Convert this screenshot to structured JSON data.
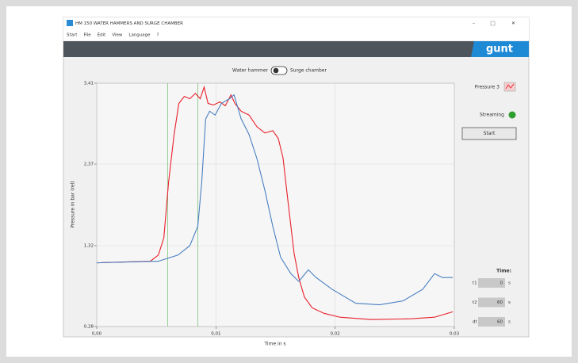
{
  "window": {
    "title": "HM 150 WATER HAMMERS AND SURGE CHAMBER"
  },
  "menu": [
    "Start",
    "File",
    "Edit",
    "View",
    "Language",
    "?"
  ],
  "logo": "gunt",
  "toggle": {
    "left": "Water hammer",
    "right": "Surge chamber"
  },
  "side_panel": {
    "legend_label": "Pressure 3",
    "status": "Streaming",
    "button": "Start"
  },
  "time_panel": {
    "title": "Time:",
    "rows": [
      {
        "label": "t1",
        "value": "0",
        "unit": "s"
      },
      {
        "label": "t2",
        "value": "60",
        "unit": "s"
      },
      {
        "label": "dt",
        "value": "60",
        "unit": "s"
      }
    ]
  },
  "chart_data": {
    "type": "line",
    "x_label": "Time in s",
    "y_label": "Pressure in bar (rel)",
    "xlim": [
      0,
      0.03
    ],
    "ylim": [
      0.28,
      3.41
    ],
    "xticks": [
      {
        "value": 0,
        "label": "0,00"
      },
      {
        "value": 0.01,
        "label": "0,01"
      },
      {
        "value": 0.02,
        "label": "0,02"
      },
      {
        "value": 0.03,
        "label": "0,03"
      }
    ],
    "yticks": [
      {
        "value": 0.28,
        "label": "0,28"
      },
      {
        "value": 1.32,
        "label": "1,32"
      },
      {
        "value": 2.37,
        "label": "2,37"
      },
      {
        "value": 3.41,
        "label": "3,41"
      }
    ],
    "grid": true,
    "cursors": {
      "color": "#7cc47c",
      "x": [
        0.00596,
        0.00848
      ]
    },
    "series": [
      {
        "name": "Pressure 3",
        "color": "#e8202a",
        "x": [
          0,
          0.0045,
          0.00517,
          0.00563,
          0.00603,
          0.00649,
          0.00689,
          0.00735,
          0.00781,
          0.00828,
          0.00868,
          0.00901,
          0.00934,
          0.0098,
          0.01033,
          0.01079,
          0.01126,
          0.01159,
          0.01212,
          0.01278,
          0.01344,
          0.01411,
          0.01477,
          0.01523,
          0.01563,
          0.01609,
          0.01656,
          0.01695,
          0.01742,
          0.01808,
          0.01907,
          0.0204,
          0.02305,
          0.02636,
          0.02834,
          0.02987
        ],
        "values": [
          1.1,
          1.12,
          1.2,
          1.42,
          2.14,
          2.75,
          3.15,
          3.24,
          3.21,
          3.28,
          3.21,
          3.36,
          3.15,
          3.13,
          3.17,
          3.12,
          3.26,
          3.15,
          3.05,
          3.0,
          2.85,
          2.77,
          2.8,
          2.7,
          2.45,
          1.83,
          1.22,
          0.91,
          0.66,
          0.52,
          0.45,
          0.4,
          0.37,
          0.38,
          0.4,
          0.47
        ]
      },
      {
        "color": "#4a7fc1",
        "x": [
          0,
          0.00517,
          0.00682,
          0.00781,
          0.00848,
          0.00881,
          0.00914,
          0.00947,
          0.00993,
          0.01046,
          0.01113,
          0.01152,
          0.01212,
          0.01278,
          0.01344,
          0.01411,
          0.01477,
          0.01543,
          0.01629,
          0.01695,
          0.01775,
          0.01841,
          0.01974,
          0.02172,
          0.02371,
          0.0257,
          0.02735,
          0.02834,
          0.02901,
          0.02987
        ],
        "values": [
          1.1,
          1.12,
          1.2,
          1.32,
          1.57,
          2.14,
          2.95,
          3.05,
          3.0,
          3.15,
          3.21,
          3.26,
          2.95,
          2.75,
          2.44,
          2.03,
          1.57,
          1.17,
          0.96,
          0.86,
          1.01,
          0.91,
          0.76,
          0.58,
          0.56,
          0.61,
          0.76,
          0.96,
          0.91,
          0.91
        ]
      }
    ]
  }
}
